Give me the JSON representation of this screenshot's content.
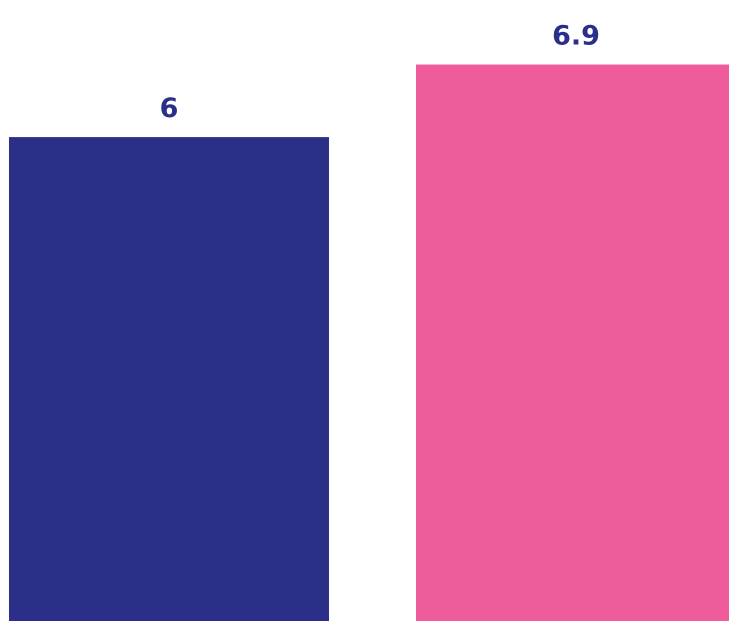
{
  "chart_data": {
    "type": "bar",
    "categories": [
      "",
      ""
    ],
    "values": [
      6,
      6.9
    ],
    "data_labels": [
      "6",
      "6.9"
    ],
    "colors": [
      "#2b2f87",
      "#ef5c9b"
    ],
    "label_color": "#2b2f87",
    "title": "",
    "xlabel": "",
    "ylabel": "",
    "ylim": [
      0,
      7.7
    ],
    "grid": false,
    "legend": "none"
  }
}
